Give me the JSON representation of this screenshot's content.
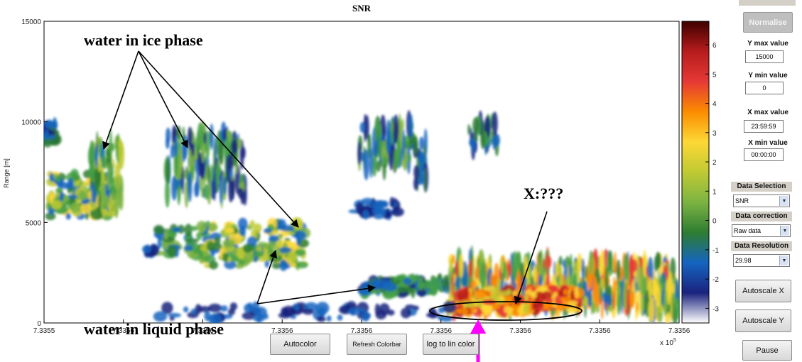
{
  "chart_data": {
    "type": "heatmap",
    "title": "SNR",
    "ylabel": "Range [m]",
    "xlabel": "",
    "x_tick_labels": [
      "7.3355",
      "7.3356",
      "7.3356",
      "7.3356",
      "7.3356",
      "7.3356",
      "7.3356",
      "7.3356",
      "7.3356"
    ],
    "x_exponent_label": "x 10",
    "x_exponent_power": "5",
    "y_ticks": [
      0,
      5000,
      10000,
      15000
    ],
    "y_tick_labels": [
      "0",
      "5000",
      "10000",
      "15000"
    ],
    "ylim": [
      0,
      15000
    ],
    "colorbar": {
      "ticks": [
        -3,
        -2,
        -1,
        0,
        1,
        2,
        3,
        4,
        5,
        6
      ],
      "tick_labels": [
        "-3",
        "-2",
        "-1",
        "0",
        "1",
        "2",
        "3",
        "4",
        "5",
        "6"
      ],
      "range": [
        -3.5,
        6.8
      ],
      "colormap": [
        "#ffffff",
        "#1a237e",
        "#1565c0",
        "#2e7d32",
        "#7cb342",
        "#c0ca33",
        "#fdd835",
        "#fb8c00",
        "#e53935",
        "#b71c1c",
        "#3e0000"
      ]
    }
  },
  "annotations": {
    "ice": "water in ice phase",
    "liquid": "water in liquid phase",
    "unknown": "X:???"
  },
  "buttons": {
    "autocolor": "Autocolor",
    "refresh_colorbar": "Refresh Colorbar",
    "log_to_lin": "log to lin color",
    "normalise": "Normalise",
    "autoscale_x": "Autoscale X",
    "autoscale_y": "Autoscale Y",
    "pause": "Pause"
  },
  "panel": {
    "y_max_label": "Y max value",
    "y_max_value": "15000",
    "y_min_label": "Y min value",
    "y_min_value": "0",
    "x_max_label": "X max value",
    "x_max_value": "23:59:59",
    "x_min_label": "X min value",
    "x_min_value": "00:00:00",
    "data_selection_label": "Data Selection",
    "data_selection_value": "SNR",
    "data_correction_label": "Data correction",
    "data_correction_value": "Raw data",
    "data_resolution_label": "Data Resolution",
    "data_resolution_value": "29.98"
  },
  "colors": {
    "arrow_magenta": "#ff00ff"
  }
}
